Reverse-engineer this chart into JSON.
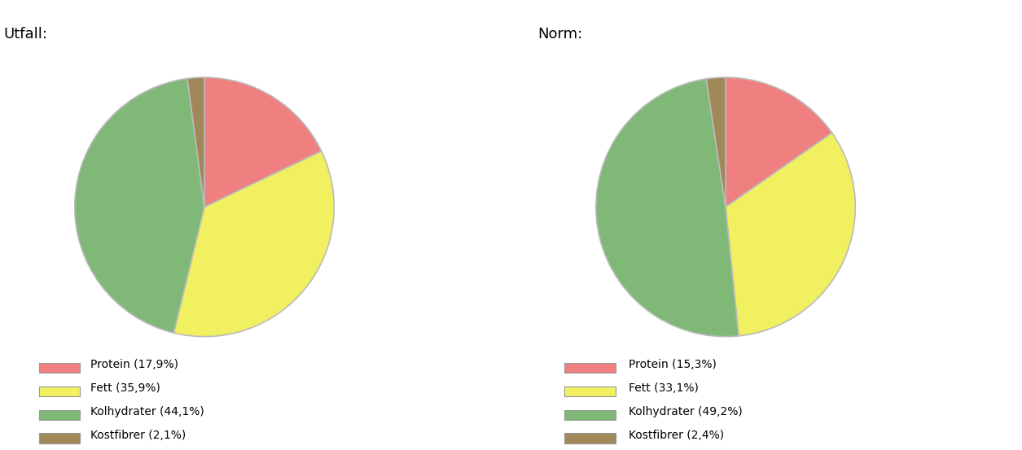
{
  "background_color": "#ffffff",
  "left_chart": {
    "title": "Utfall:",
    "values": [
      17.9,
      35.9,
      44.1,
      2.1
    ],
    "colors": [
      "#f08080",
      "#f0f060",
      "#80b878",
      "#a08858"
    ],
    "labels": [
      "Protein (17,9%)",
      "Fett (35,9%)",
      "Kolhydrater (44,1%)",
      "Kostfibrer (2,1%)"
    ],
    "startangle": 90
  },
  "right_chart": {
    "title": "Norm:",
    "values": [
      15.3,
      33.1,
      49.2,
      2.4
    ],
    "colors": [
      "#f08080",
      "#f0f060",
      "#80b878",
      "#a08858"
    ],
    "labels": [
      "Protein (15,3%)",
      "Fett (33,1%)",
      "Kolhydrater (49,2%)",
      "Kostfibrer (2,4%)"
    ],
    "startangle": 90
  },
  "legend_fontsize": 10,
  "title_fontsize": 13,
  "wedge_edge_color": "#bbbbbb",
  "wedge_linewidth": 1.2
}
